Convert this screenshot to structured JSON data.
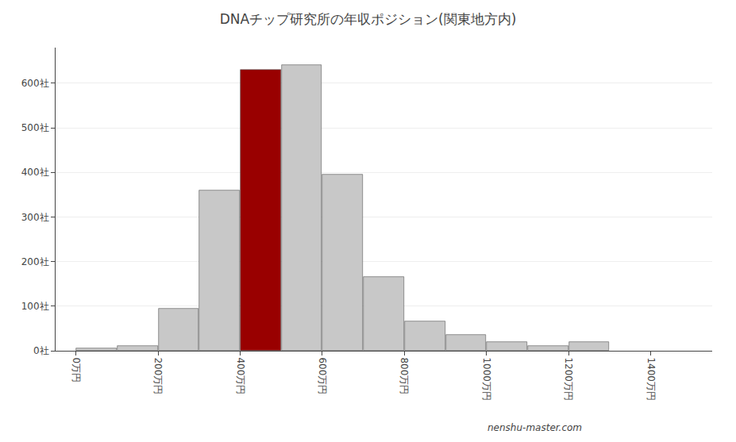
{
  "chart_data": {
    "type": "histogram",
    "title": "DNAチップ研究所の年収ポジション(関東地方内)",
    "annotations": [
      "nenshu-master.com"
    ],
    "bins": [
      0,
      100,
      200,
      300,
      400,
      500,
      600,
      700,
      800,
      900,
      1000,
      1100,
      1200,
      1300
    ],
    "values": [
      5,
      10,
      95,
      360,
      630,
      640,
      395,
      165,
      65,
      35,
      20,
      10,
      20
    ],
    "colors": [
      "#c8c8c8",
      "#c8c8c8",
      "#c8c8c8",
      "#c8c8c8",
      "#990000",
      "#c8c8c8",
      "#c8c8c8",
      "#c8c8c8",
      "#c8c8c8",
      "#c8c8c8",
      "#c8c8c8",
      "#c8c8c8",
      "#c8c8c8"
    ],
    "xlim": [
      -50,
      1550
    ],
    "xticks": [
      {
        "value": 0,
        "label": "0万円"
      },
      {
        "value": 200,
        "label": "200万円"
      },
      {
        "value": 400,
        "label": "400万円"
      },
      {
        "value": 600,
        "label": "600万円"
      },
      {
        "value": 800,
        "label": "800万円"
      },
      {
        "value": 1000,
        "label": "1000万円"
      },
      {
        "value": 1200,
        "label": "1200万円"
      },
      {
        "value": 1400,
        "label": "1400万円"
      }
    ],
    "ylim": [
      0,
      680
    ],
    "yticks": [
      {
        "value": 0,
        "label": "0社"
      },
      {
        "value": 100,
        "label": "100社"
      },
      {
        "value": 200,
        "label": "200社"
      },
      {
        "value": 300,
        "label": "300社"
      },
      {
        "value": 400,
        "label": "400社"
      },
      {
        "value": 500,
        "label": "500社"
      },
      {
        "value": 600,
        "label": "600社"
      }
    ],
    "grid": true
  }
}
